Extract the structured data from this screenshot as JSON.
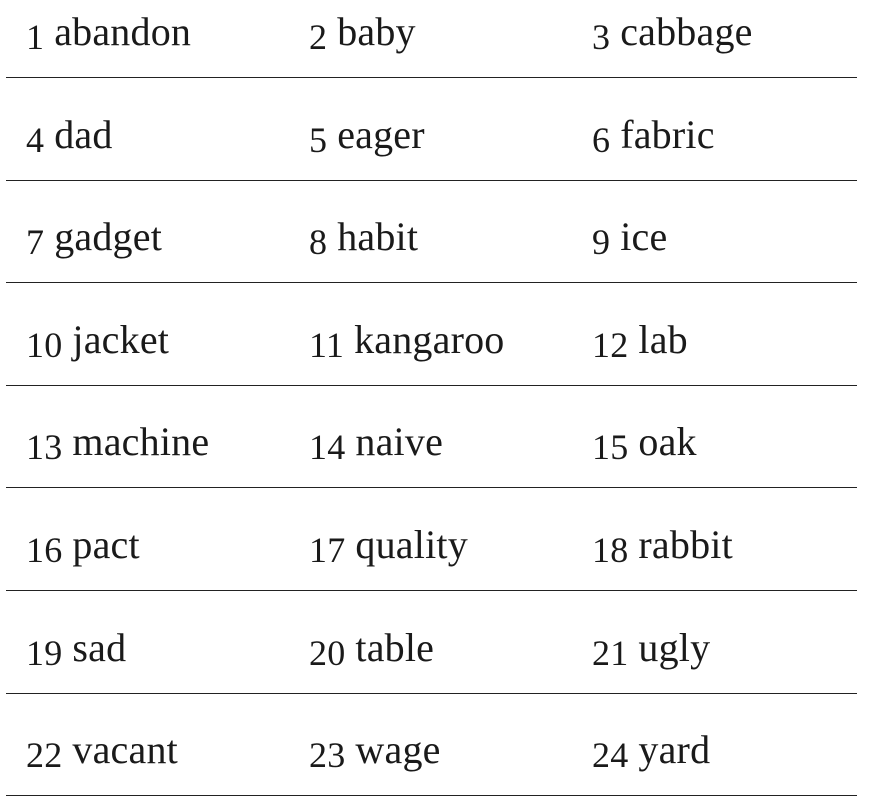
{
  "words": [
    {
      "num": "1",
      "word": "abandon"
    },
    {
      "num": "2",
      "word": "baby"
    },
    {
      "num": "3",
      "word": "cabbage"
    },
    {
      "num": "4",
      "word": "dad"
    },
    {
      "num": "5",
      "word": "eager"
    },
    {
      "num": "6",
      "word": "fabric"
    },
    {
      "num": "7",
      "word": "gadget"
    },
    {
      "num": "8",
      "word": "habit"
    },
    {
      "num": "9",
      "word": "ice"
    },
    {
      "num": "10",
      "word": "jacket"
    },
    {
      "num": "11",
      "word": "kangaroo"
    },
    {
      "num": "12",
      "word": "lab"
    },
    {
      "num": "13",
      "word": "machine"
    },
    {
      "num": "14",
      "word": "naive"
    },
    {
      "num": "15",
      "word": "oak"
    },
    {
      "num": "16",
      "word": "pact"
    },
    {
      "num": "17",
      "word": "quality"
    },
    {
      "num": "18",
      "word": "rabbit"
    },
    {
      "num": "19",
      "word": "sad"
    },
    {
      "num": "20",
      "word": "table"
    },
    {
      "num": "21",
      "word": "ugly"
    },
    {
      "num": "22",
      "word": "vacant"
    },
    {
      "num": "23",
      "word": "wage"
    },
    {
      "num": "24",
      "word": "yard"
    }
  ]
}
